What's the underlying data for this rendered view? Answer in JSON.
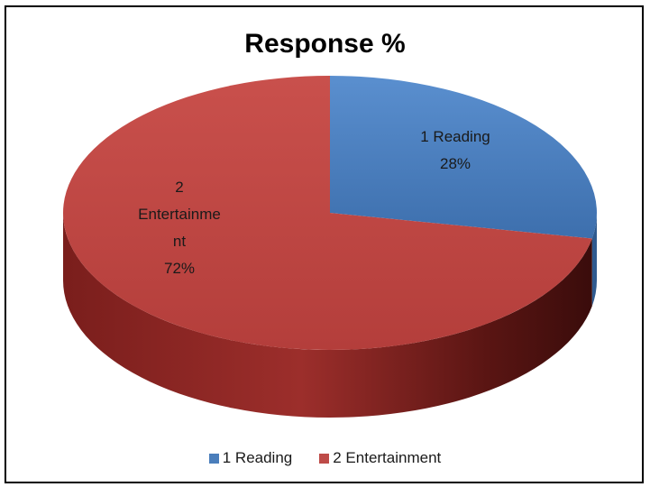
{
  "chart_data": {
    "type": "pie",
    "title": "Response %",
    "slices": [
      {
        "category": "1 Reading",
        "value": 28,
        "value_label": "28%",
        "label_lines": [
          "1 Reading"
        ],
        "color": "#4a7ebb"
      },
      {
        "category": "2 Entertainment",
        "value": 72,
        "value_label": "72%",
        "label_lines": [
          "2",
          "Entertainme",
          "nt"
        ],
        "color": "#be4b48"
      }
    ],
    "legend_position": "bottom",
    "three_d": true
  }
}
